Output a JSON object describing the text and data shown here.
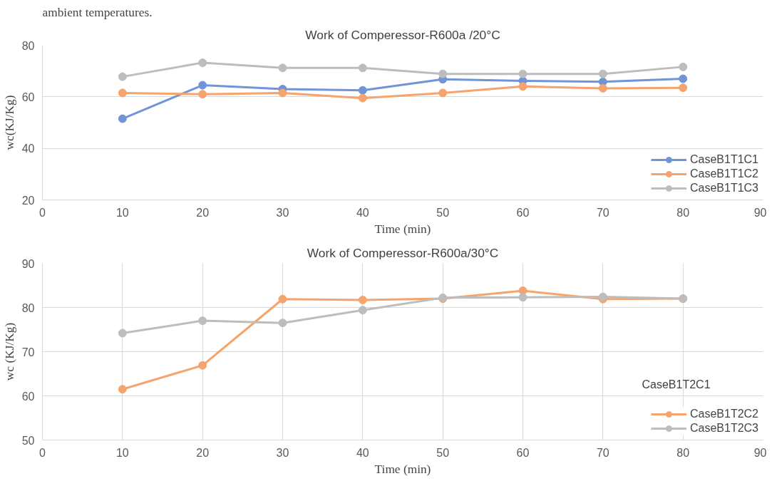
{
  "chart_data": [
    {
      "type": "line",
      "title": "Work of Comperessor-R600a /20°C",
      "xlabel": "Time (min)",
      "ylabel": "wc(KJ/Kg)",
      "annotations": [
        "ambient temperatures."
      ],
      "x": [
        10,
        20,
        30,
        40,
        50,
        60,
        70,
        80
      ],
      "xlim": [
        0,
        90
      ],
      "xticks": [
        0,
        10,
        20,
        30,
        40,
        50,
        60,
        70,
        80,
        90
      ],
      "ylim": [
        20,
        80
      ],
      "yticks": [
        20,
        40,
        60,
        80
      ],
      "grid": "y",
      "legend": "bottom right",
      "marker": "circle",
      "line_style": "solid",
      "series": [
        {
          "name": "CaseB1T1C1",
          "color": "#7094d8",
          "values": [
            51.5,
            64.5,
            63,
            62.5,
            66.8,
            66.2,
            65.8,
            67
          ]
        },
        {
          "name": "CaseB1T1C2",
          "color": "#f4a46c",
          "values": [
            61.5,
            61,
            61.5,
            59.5,
            61.5,
            64,
            63.3,
            63.5
          ]
        },
        {
          "name": "CaseB1T1C3",
          "color": "#bdbdbd",
          "values": [
            67.8,
            73.2,
            71.2,
            71.2,
            68.9,
            68.9,
            68.9,
            71.6
          ]
        }
      ]
    },
    {
      "type": "line",
      "title": "Work of Comperessor-R600a/30°C",
      "xlabel": "Time (min)",
      "ylabel": "wc (KJ/Kg)",
      "annotations": [
        "CaseB1T2C1"
      ],
      "x": [
        10,
        20,
        30,
        40,
        50,
        60,
        70,
        80
      ],
      "xlim": [
        0,
        90
      ],
      "xticks": [
        0,
        10,
        20,
        30,
        40,
        50,
        60,
        70,
        80,
        90
      ],
      "ylim": [
        50,
        90
      ],
      "yticks": [
        50,
        60,
        70,
        80,
        90
      ],
      "grid": true,
      "legend": "bottom right",
      "marker": "circle",
      "line_style": "solid",
      "series": [
        {
          "name": "CaseB1T2C2",
          "color": "#f4a46c",
          "values": [
            61.5,
            66.9,
            81.9,
            81.7,
            82,
            83.8,
            81.9,
            82
          ]
        },
        {
          "name": "CaseB1T2C3",
          "color": "#bdbdbd",
          "values": [
            74.2,
            77,
            76.5,
            79.4,
            82.2,
            82.3,
            82.4,
            82
          ]
        }
      ]
    }
  ]
}
